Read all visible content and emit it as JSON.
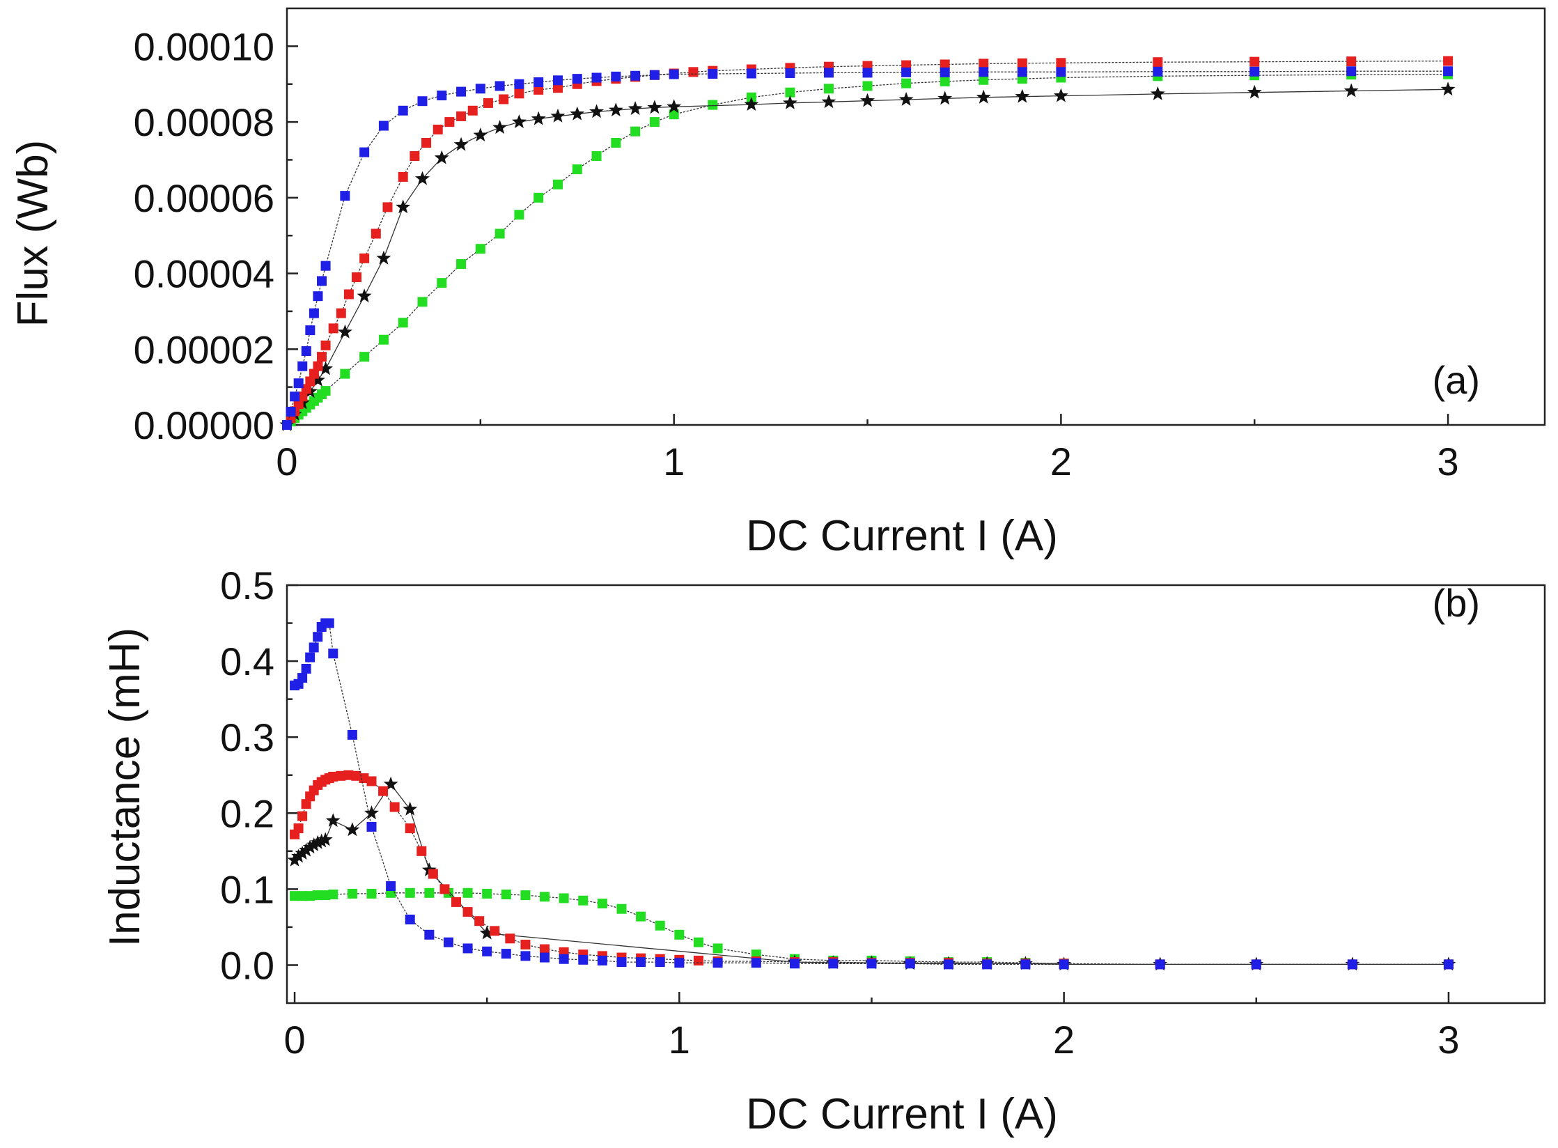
{
  "chart_data": [
    {
      "type": "scatter",
      "panel_label": "(a)",
      "xlabel": "DC Current I (A)",
      "ylabel": "Flux (Wb)",
      "xlim": [
        0,
        3.25
      ],
      "ylim": [
        0,
        0.00011
      ],
      "x_ticks": [
        0,
        1,
        2,
        3
      ],
      "x_tick_labels": [
        "0",
        "1",
        "2",
        "3"
      ],
      "y_ticks": [
        0,
        2e-05,
        4e-05,
        6e-05,
        8e-05,
        0.0001
      ],
      "y_tick_labels": [
        "0.00000",
        "0.00002",
        "0.00004",
        "0.00006",
        "0.00008",
        "0.00010"
      ],
      "legend": "none",
      "series": [
        {
          "name": "blue",
          "color": "#1f1fe6",
          "marker": "square",
          "x": [
            0,
            0.01,
            0.02,
            0.03,
            0.04,
            0.05,
            0.06,
            0.07,
            0.08,
            0.09,
            0.1,
            0.15,
            0.2,
            0.25,
            0.3,
            0.35,
            0.4,
            0.45,
            0.5,
            0.55,
            0.6,
            0.65,
            0.7,
            0.75,
            0.8,
            0.85,
            0.9,
            0.95,
            1.0,
            1.1,
            1.2,
            1.3,
            1.4,
            1.5,
            1.6,
            1.7,
            1.8,
            1.9,
            2.0,
            2.25,
            2.5,
            2.75,
            3.0
          ],
          "y": [
            0,
            3.5e-06,
            7.5e-06,
            1.1e-05,
            1.55e-05,
            1.95e-05,
            2.5e-05,
            2.95e-05,
            3.4e-05,
            3.8e-05,
            4.2e-05,
            6.05e-05,
            7.2e-05,
            7.9e-05,
            8.3e-05,
            8.55e-05,
            8.7e-05,
            8.8e-05,
            8.88e-05,
            8.95e-05,
            9e-05,
            9.05e-05,
            9.1e-05,
            9.14e-05,
            9.17e-05,
            9.2e-05,
            9.22e-05,
            9.24e-05,
            9.26e-05,
            9.27e-05,
            9.28e-05,
            9.29e-05,
            9.3e-05,
            9.3e-05,
            9.31e-05,
            9.31e-05,
            9.32e-05,
            9.32e-05,
            9.32e-05,
            9.33e-05,
            9.33e-05,
            9.34e-05,
            9.34e-05
          ]
        },
        {
          "name": "red",
          "color": "#e61f1f",
          "marker": "square",
          "x": [
            0,
            0.01,
            0.02,
            0.03,
            0.04,
            0.05,
            0.06,
            0.07,
            0.08,
            0.09,
            0.1,
            0.12,
            0.14,
            0.16,
            0.18,
            0.2,
            0.23,
            0.26,
            0.3,
            0.33,
            0.36,
            0.39,
            0.42,
            0.45,
            0.48,
            0.52,
            0.56,
            0.6,
            0.65,
            0.7,
            0.75,
            0.8,
            0.85,
            0.9,
            0.95,
            1.0,
            1.05,
            1.1,
            1.2,
            1.3,
            1.4,
            1.5,
            1.6,
            1.7,
            1.8,
            1.9,
            2.0,
            2.25,
            2.5,
            2.75,
            3.0
          ],
          "y": [
            0,
            1.8e-06,
            3.6e-06,
            5.5e-06,
            7.5e-06,
            9.5e-06,
            1.15e-05,
            1.35e-05,
            1.55e-05,
            1.8e-05,
            2.1e-05,
            2.55e-05,
            2.95e-05,
            3.45e-05,
            3.9e-05,
            4.4e-05,
            5.05e-05,
            5.75e-05,
            6.55e-05,
            7.1e-05,
            7.45e-05,
            7.8e-05,
            8e-05,
            8.15e-05,
            8.3e-05,
            8.5e-05,
            8.6e-05,
            8.75e-05,
            8.85e-05,
            8.9e-05,
            9e-05,
            9.08e-05,
            9.14e-05,
            9.19e-05,
            9.24e-05,
            9.28e-05,
            9.32e-05,
            9.35e-05,
            9.39e-05,
            9.43e-05,
            9.46e-05,
            9.48e-05,
            9.5e-05,
            9.52e-05,
            9.54e-05,
            9.55e-05,
            9.56e-05,
            9.58e-05,
            9.59e-05,
            9.6e-05,
            9.61e-05
          ]
        },
        {
          "name": "green",
          "color": "#22dd22",
          "marker": "square",
          "x": [
            0,
            0.01,
            0.02,
            0.03,
            0.04,
            0.05,
            0.06,
            0.07,
            0.08,
            0.09,
            0.1,
            0.15,
            0.2,
            0.25,
            0.3,
            0.35,
            0.4,
            0.45,
            0.5,
            0.55,
            0.6,
            0.65,
            0.7,
            0.75,
            0.8,
            0.85,
            0.9,
            0.95,
            1.0,
            1.1,
            1.2,
            1.3,
            1.4,
            1.5,
            1.6,
            1.7,
            1.8,
            1.9,
            2.0,
            2.25,
            2.5,
            2.75,
            3.0
          ],
          "y": [
            0,
            9e-07,
            1.8e-06,
            2.7e-06,
            3.6e-06,
            4.5e-06,
            5.4e-06,
            6.3e-06,
            7.2e-06,
            8.1e-06,
            9e-06,
            1.35e-05,
            1.8e-05,
            2.25e-05,
            2.7e-05,
            3.25e-05,
            3.75e-05,
            4.25e-05,
            4.65e-05,
            5.05e-05,
            5.55e-05,
            6e-05,
            6.35e-05,
            6.75e-05,
            7.1e-05,
            7.45e-05,
            7.75e-05,
            8e-05,
            8.2e-05,
            8.45e-05,
            8.65e-05,
            8.78e-05,
            8.88e-05,
            8.95e-05,
            9.02e-05,
            9.07e-05,
            9.11e-05,
            9.14e-05,
            9.17e-05,
            9.21e-05,
            9.23e-05,
            9.25e-05,
            9.26e-05
          ]
        },
        {
          "name": "black",
          "color": "#111111",
          "marker": "star",
          "x": [
            0,
            0.02,
            0.04,
            0.06,
            0.08,
            0.1,
            0.15,
            0.2,
            0.25,
            0.3,
            0.35,
            0.4,
            0.45,
            0.5,
            0.55,
            0.6,
            0.65,
            0.7,
            0.75,
            0.8,
            0.85,
            0.9,
            0.95,
            1.0,
            1.2,
            1.3,
            1.4,
            1.5,
            1.6,
            1.7,
            1.8,
            1.9,
            2.0,
            2.25,
            2.5,
            2.75,
            3.0
          ],
          "y": [
            0,
            2.8e-06,
            5.8e-06,
            8.8e-06,
            1.18e-05,
            1.48e-05,
            2.45e-05,
            3.4e-05,
            4.4e-05,
            5.75e-05,
            6.5e-05,
            7.05e-05,
            7.4e-05,
            7.65e-05,
            7.85e-05,
            8e-05,
            8.08e-05,
            8.15e-05,
            8.21e-05,
            8.27e-05,
            8.31e-05,
            8.35e-05,
            8.38e-05,
            8.4e-05,
            8.46e-05,
            8.5e-05,
            8.53e-05,
            8.56e-05,
            8.59e-05,
            8.62e-05,
            8.65e-05,
            8.67e-05,
            8.69e-05,
            8.74e-05,
            8.78e-05,
            8.82e-05,
            8.86e-05
          ]
        }
      ]
    },
    {
      "type": "scatter",
      "panel_label": "(b)",
      "xlabel": "DC Current I (A)",
      "ylabel": "Inductance (mH)",
      "xlim": [
        -0.02,
        3.25
      ],
      "ylim": [
        -0.05,
        0.5
      ],
      "x_ticks": [
        0,
        1,
        2,
        3
      ],
      "x_tick_labels": [
        "0",
        "1",
        "2",
        "3"
      ],
      "y_ticks": [
        0,
        0.1,
        0.2,
        0.3,
        0.4,
        0.5
      ],
      "y_tick_labels": [
        "0.0",
        "0.1",
        "0.2",
        "0.3",
        "0.4",
        "0.5"
      ],
      "legend": "none",
      "series": [
        {
          "name": "blue",
          "color": "#1f1fe6",
          "marker": "square",
          "x": [
            0,
            0.01,
            0.02,
            0.03,
            0.04,
            0.05,
            0.06,
            0.07,
            0.08,
            0.09,
            0.1,
            0.15,
            0.2,
            0.25,
            0.3,
            0.35,
            0.4,
            0.45,
            0.5,
            0.55,
            0.6,
            0.65,
            0.7,
            0.75,
            0.8,
            0.85,
            0.9,
            0.95,
            1.0,
            1.1,
            1.2,
            1.3,
            1.4,
            1.5,
            1.6,
            1.7,
            1.8,
            1.9,
            2.0,
            2.25,
            2.5,
            2.75,
            3.0
          ],
          "y": [
            0.368,
            0.37,
            0.378,
            0.39,
            0.405,
            0.418,
            0.432,
            0.445,
            0.45,
            0.45,
            0.41,
            0.303,
            0.182,
            0.104,
            0.06,
            0.04,
            0.03,
            0.022,
            0.018,
            0.015,
            0.012,
            0.01,
            0.008,
            0.007,
            0.006,
            0.004,
            0.004,
            0.004,
            0.003,
            0.003,
            0.003,
            0.002,
            0.002,
            0.002,
            0.002,
            0.001,
            0.001,
            0.001,
            0.001,
            0.001,
            0.001,
            0.001,
            0.001
          ]
        },
        {
          "name": "red",
          "color": "#e61f1f",
          "marker": "square",
          "x": [
            0,
            0.01,
            0.02,
            0.03,
            0.04,
            0.05,
            0.06,
            0.07,
            0.08,
            0.09,
            0.1,
            0.12,
            0.14,
            0.16,
            0.18,
            0.2,
            0.23,
            0.26,
            0.3,
            0.33,
            0.36,
            0.39,
            0.42,
            0.45,
            0.48,
            0.52,
            0.56,
            0.6,
            0.65,
            0.7,
            0.75,
            0.8,
            0.85,
            0.9,
            0.95,
            1.0,
            1.05,
            1.1,
            1.2,
            1.3,
            1.4,
            1.5,
            1.6,
            1.7,
            1.8,
            1.9,
            2.0,
            2.25,
            2.5,
            2.75,
            3.0
          ],
          "y": [
            0.172,
            0.18,
            0.196,
            0.212,
            0.222,
            0.23,
            0.237,
            0.241,
            0.244,
            0.246,
            0.248,
            0.249,
            0.25,
            0.249,
            0.246,
            0.242,
            0.229,
            0.208,
            0.18,
            0.15,
            0.12,
            0.1,
            0.083,
            0.07,
            0.058,
            0.045,
            0.035,
            0.027,
            0.021,
            0.017,
            0.014,
            0.012,
            0.01,
            0.009,
            0.008,
            0.007,
            0.006,
            0.005,
            0.005,
            0.004,
            0.004,
            0.003,
            0.003,
            0.003,
            0.002,
            0.002,
            0.002,
            0.001,
            0.001,
            0.001,
            0.001
          ]
        },
        {
          "name": "green",
          "color": "#22dd22",
          "marker": "square",
          "x": [
            0,
            0.02,
            0.04,
            0.06,
            0.08,
            0.1,
            0.15,
            0.2,
            0.25,
            0.3,
            0.35,
            0.4,
            0.45,
            0.5,
            0.55,
            0.6,
            0.65,
            0.7,
            0.75,
            0.8,
            0.85,
            0.9,
            0.95,
            1.0,
            1.05,
            1.1,
            1.2,
            1.3,
            1.4,
            1.5,
            1.6,
            1.7,
            1.8,
            1.9,
            2.0
          ],
          "y": [
            0.091,
            0.091,
            0.091,
            0.092,
            0.092,
            0.093,
            0.094,
            0.094,
            0.095,
            0.095,
            0.095,
            0.095,
            0.095,
            0.094,
            0.093,
            0.092,
            0.09,
            0.088,
            0.085,
            0.081,
            0.074,
            0.064,
            0.052,
            0.04,
            0.03,
            0.022,
            0.014,
            0.008,
            0.006,
            0.006,
            0.005,
            0.004,
            0.004,
            0.003,
            0.002
          ]
        },
        {
          "name": "black",
          "color": "#111111",
          "marker": "star",
          "x": [
            0,
            0.01,
            0.02,
            0.03,
            0.04,
            0.05,
            0.06,
            0.07,
            0.08,
            0.1,
            0.15,
            0.2,
            0.25,
            0.3,
            0.35,
            0.5,
            1.3,
            1.4,
            1.5,
            1.6,
            1.7,
            1.8,
            1.9,
            2.0,
            2.25,
            2.5,
            2.75,
            3.0
          ],
          "y": [
            0.138,
            0.143,
            0.147,
            0.151,
            0.155,
            0.158,
            0.161,
            0.163,
            0.165,
            0.19,
            0.178,
            0.2,
            0.238,
            0.205,
            0.125,
            0.042,
            0.004,
            0.003,
            0.003,
            0.002,
            0.002,
            0.002,
            0.002,
            0.001,
            0.001,
            0.001,
            0.001,
            0.001
          ]
        }
      ]
    }
  ]
}
